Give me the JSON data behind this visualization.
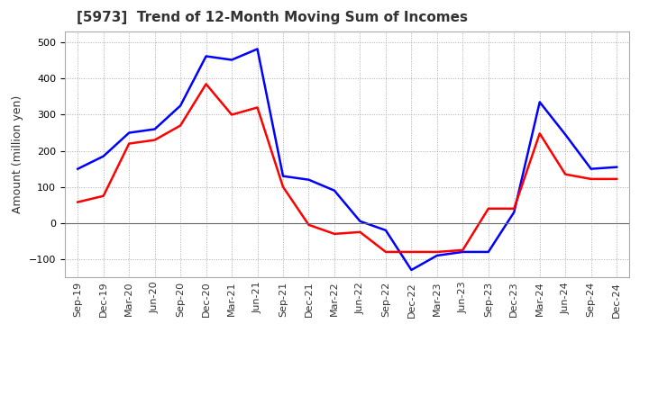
{
  "title": "[5973]  Trend of 12-Month Moving Sum of Incomes",
  "ylabel": "Amount (million yen)",
  "ylim": [
    -150,
    530
  ],
  "yticks": [
    -100,
    0,
    100,
    200,
    300,
    400,
    500
  ],
  "background_color": "#ffffff",
  "plot_bg_color": "#ffffff",
  "grid_color": "#aaaaaa",
  "labels": [
    "Sep-19",
    "Dec-19",
    "Mar-20",
    "Jun-20",
    "Sep-20",
    "Dec-20",
    "Mar-21",
    "Jun-21",
    "Sep-21",
    "Dec-21",
    "Mar-22",
    "Jun-22",
    "Sep-22",
    "Dec-22",
    "Mar-23",
    "Jun-23",
    "Sep-23",
    "Dec-23",
    "Mar-24",
    "Jun-24",
    "Sep-24",
    "Dec-24"
  ],
  "ordinary_income": [
    150,
    185,
    250,
    260,
    325,
    462,
    452,
    482,
    130,
    120,
    90,
    5,
    -20,
    -130,
    -90,
    -80,
    -80,
    30,
    335,
    245,
    150,
    155
  ],
  "net_income": [
    58,
    75,
    220,
    230,
    270,
    385,
    300,
    320,
    100,
    -5,
    -30,
    -25,
    -80,
    -80,
    -80,
    -75,
    40,
    40,
    248,
    135,
    122,
    122
  ],
  "ordinary_color": "#0000ff",
  "net_color": "#ff0000",
  "line_width": 1.8,
  "title_fontsize": 11,
  "title_color": "#333333",
  "axis_label_fontsize": 9,
  "tick_fontsize": 8,
  "legend_fontsize": 9
}
